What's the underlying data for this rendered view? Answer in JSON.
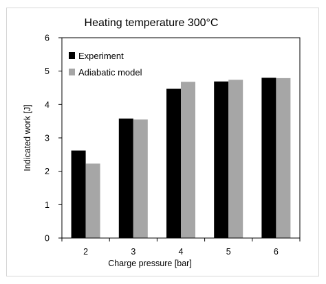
{
  "chart_data": {
    "type": "bar",
    "title": "Heating temperature 300°C",
    "xlabel": "Charge pressure [bar]",
    "ylabel": "Indicated work [J]",
    "categories": [
      "2",
      "3",
      "4",
      "5",
      "6"
    ],
    "ylim": [
      0,
      6
    ],
    "yticks": [
      "0",
      "1",
      "2",
      "3",
      "4",
      "5",
      "6"
    ],
    "grid": false,
    "legend_position": "top-left",
    "series": [
      {
        "name": "Experiment",
        "color": "#000000",
        "values": [
          2.62,
          3.58,
          4.47,
          4.69,
          4.8
        ]
      },
      {
        "name": "Adiabatic model",
        "color": "#a6a6a6",
        "values": [
          2.23,
          3.55,
          4.68,
          4.74,
          4.79
        ]
      }
    ]
  }
}
